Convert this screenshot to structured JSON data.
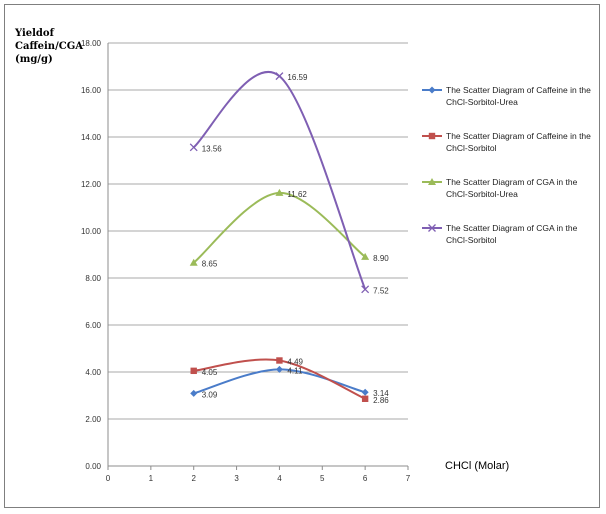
{
  "chart_data": {
    "type": "line",
    "title": "",
    "ylabel": "Yieldof\nCaffein/CGA\n(mg/g)",
    "xlabel": "CHCl (Molar)",
    "xlim": [
      0,
      7
    ],
    "ylim": [
      0,
      18
    ],
    "x_ticks": [
      "0",
      "1",
      "2",
      "3",
      "4",
      "5",
      "6",
      "7"
    ],
    "y_ticks": [
      "0.00",
      "2.00",
      "4.00",
      "6.00",
      "8.00",
      "10.00",
      "12.00",
      "14.00",
      "16.00",
      "18.00"
    ],
    "grid": "horizontal",
    "legend_position": "right",
    "series": [
      {
        "name": "The Scatter Diagram of Caffeine in the ChCl-Sorbitol-Urea",
        "color": "#4a7cc9",
        "marker": "diamond",
        "x": [
          2,
          4,
          6
        ],
        "y": [
          3.09,
          4.11,
          3.14
        ],
        "labels": [
          "3.09",
          "4.11",
          "3.14"
        ]
      },
      {
        "name": "The Scatter Diagram of Caffeine in the ChCl-Sorbitol",
        "color": "#c0504d",
        "marker": "square",
        "x": [
          2,
          4,
          6
        ],
        "y": [
          4.05,
          4.49,
          2.86
        ],
        "labels": [
          "4.05",
          "4.49",
          "2.86"
        ]
      },
      {
        "name": "The Scatter Diagram of CGA in the ChCl-Sorbitol-Urea",
        "color": "#9bbb59",
        "marker": "triangle",
        "x": [
          2,
          4,
          6
        ],
        "y": [
          8.65,
          11.62,
          8.9
        ],
        "labels": [
          "8.65",
          "11.62",
          "8.90"
        ]
      },
      {
        "name": "The Scatter Diagram of CGA in the ChCl-Sorbitol",
        "color": "#7f5fb3",
        "marker": "x",
        "x": [
          2,
          4,
          6
        ],
        "y": [
          13.56,
          16.59,
          7.52
        ],
        "labels": [
          "13.56",
          "16.59",
          "7.52"
        ]
      }
    ]
  }
}
